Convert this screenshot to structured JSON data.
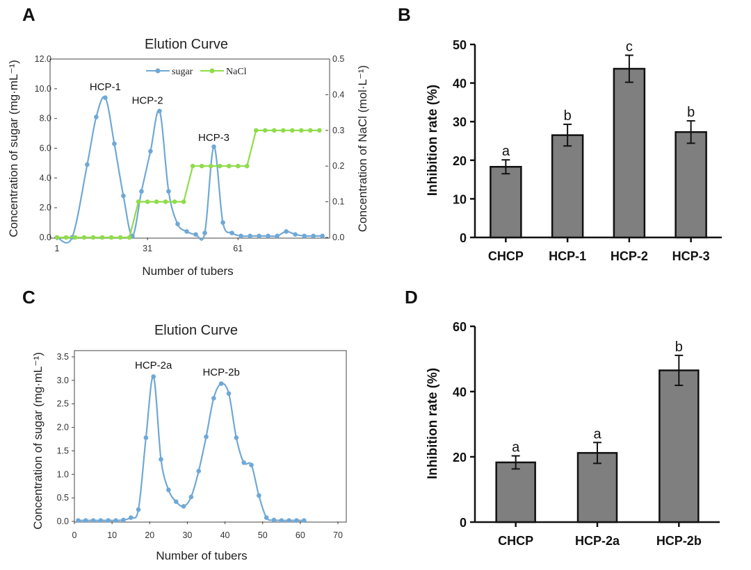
{
  "panels": {
    "A": "A",
    "B": "B",
    "C": "C",
    "D": "D"
  },
  "colors": {
    "sugar": "#6fa8d6",
    "nacl": "#8fdc4a",
    "bar": "#7f7f7f",
    "axis": "#111111"
  },
  "chart_data": [
    {
      "id": "A",
      "type": "line",
      "title": "Elution Curve",
      "xlabel": "Number of tubers",
      "ylabel": "Concentration of sugar (mg·mL⁻¹)",
      "y2label": "Concentration of NaCl (mol·L⁻¹)",
      "xlim": [
        1,
        90
      ],
      "ylim": [
        0,
        12
      ],
      "y2lim": [
        0,
        0.5
      ],
      "xticks": [
        "1",
        "31",
        "61"
      ],
      "xtick_values": [
        1,
        31,
        61
      ],
      "yticks": [
        "0.0",
        "2.0",
        "4.0",
        "6.0",
        "8.0",
        "10.0",
        "12.0"
      ],
      "y2ticks": [
        "0.0",
        "0.1",
        "0.2",
        "0.3",
        "0.4",
        "0.5"
      ],
      "legend": [
        "sugar",
        "NaCl"
      ],
      "annotations": [
        {
          "text": "HCP-1",
          "x": 17,
          "y": 9.9
        },
        {
          "text": "HCP-2",
          "x": 31,
          "y": 9.0
        },
        {
          "text": "HCP-3",
          "x": 53,
          "y": 6.5
        }
      ],
      "series": [
        {
          "name": "sugar",
          "axis": "left",
          "x": [
            1,
            6,
            11,
            14,
            17,
            20,
            23,
            26,
            29,
            32,
            35,
            38,
            41,
            44,
            47,
            50,
            53,
            56,
            59,
            62,
            65,
            68,
            71,
            74,
            77,
            80,
            83,
            86,
            89
          ],
          "y": [
            0.0,
            0.0,
            4.9,
            8.1,
            9.4,
            6.3,
            2.8,
            0.1,
            3.1,
            5.8,
            8.5,
            3.1,
            0.9,
            0.4,
            0.2,
            0.3,
            6.1,
            1.0,
            0.3,
            0.1,
            0.1,
            0.1,
            0.1,
            0.1,
            0.4,
            0.2,
            0.1,
            0.1,
            0.1
          ]
        },
        {
          "name": "NaCl",
          "axis": "right",
          "x": [
            1,
            4,
            7,
            10,
            13,
            16,
            19,
            22,
            25,
            28,
            31,
            34,
            37,
            40,
            43,
            46,
            49,
            52,
            55,
            58,
            61,
            64,
            67,
            70,
            73,
            76,
            79,
            82,
            85,
            88
          ],
          "y": [
            0.0,
            0.0,
            0.0,
            0.0,
            0.0,
            0.0,
            0.0,
            0.0,
            0.0,
            0.1,
            0.1,
            0.1,
            0.1,
            0.1,
            0.1,
            0.2,
            0.2,
            0.2,
            0.2,
            0.2,
            0.2,
            0.2,
            0.3,
            0.3,
            0.3,
            0.3,
            0.3,
            0.3,
            0.3,
            0.3
          ]
        }
      ]
    },
    {
      "id": "B",
      "type": "bar",
      "ylabel": "Inhibition rate (%)",
      "ylim": [
        0,
        50
      ],
      "yticks": [
        "0",
        "10",
        "20",
        "30",
        "40",
        "50"
      ],
      "categories": [
        "CHCP",
        "HCP-1",
        "HCP-2",
        "HCP-3"
      ],
      "values": [
        18.3,
        26.5,
        43.7,
        27.3
      ],
      "errors": [
        1.8,
        2.8,
        3.5,
        2.9
      ],
      "significance": [
        "a",
        "b",
        "c",
        "b"
      ]
    },
    {
      "id": "C",
      "type": "line",
      "title": "Elution Curve",
      "xlabel": "Number of tubers",
      "ylabel": "Concentration of sugar (mg·mL⁻¹)",
      "xlim": [
        0,
        70
      ],
      "ylim": [
        0,
        3.5
      ],
      "xticks": [
        "0",
        "10",
        "20",
        "30",
        "40",
        "50",
        "60",
        "70"
      ],
      "yticks": [
        "0.0",
        "0.5",
        "1.0",
        "1.5",
        "2.0",
        "2.5",
        "3.0",
        "3.5"
      ],
      "annotations": [
        {
          "text": "HCP-2a",
          "x": 21,
          "y": 3.25
        },
        {
          "text": "HCP-2b",
          "x": 39,
          "y": 3.1
        }
      ],
      "series": [
        {
          "name": "sugar",
          "x": [
            1,
            3,
            5,
            7,
            9,
            11,
            13,
            15,
            17,
            19,
            21,
            23,
            25,
            27,
            29,
            31,
            33,
            35,
            37,
            39,
            41,
            43,
            45,
            47,
            49,
            51,
            53,
            55,
            57,
            59,
            61
          ],
          "y": [
            0.02,
            0.02,
            0.02,
            0.02,
            0.02,
            0.02,
            0.03,
            0.08,
            0.25,
            1.78,
            3.08,
            1.32,
            0.67,
            0.42,
            0.32,
            0.52,
            1.07,
            1.8,
            2.62,
            2.93,
            2.72,
            1.78,
            1.25,
            1.2,
            0.55,
            0.08,
            0.03,
            0.02,
            0.02,
            0.02,
            0.02
          ]
        }
      ]
    },
    {
      "id": "D",
      "type": "bar",
      "ylabel": "Inhibition rate (%)",
      "ylim": [
        0,
        60
      ],
      "yticks": [
        "0",
        "20",
        "40",
        "60"
      ],
      "categories": [
        "CHCP",
        "HCP-2a",
        "HCP-2b"
      ],
      "values": [
        18.3,
        21.2,
        46.5
      ],
      "errors": [
        2.0,
        3.2,
        4.6
      ],
      "significance": [
        "a",
        "a",
        "b"
      ]
    }
  ]
}
